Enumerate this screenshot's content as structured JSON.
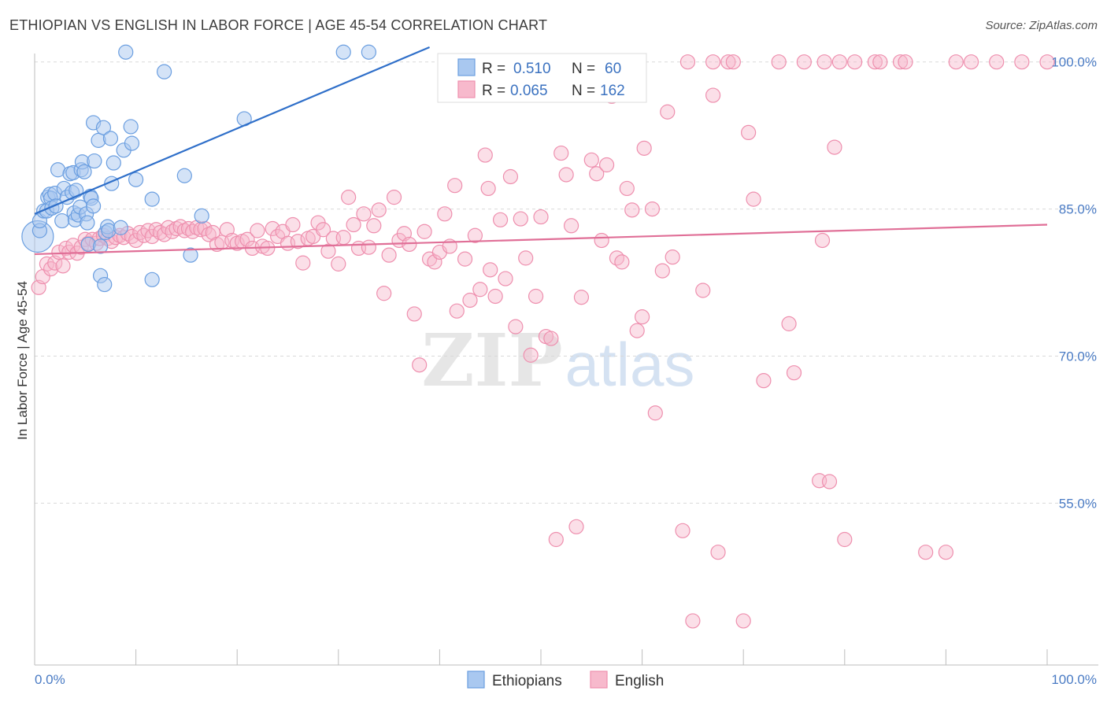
{
  "title": "ETHIOPIAN VS ENGLISH IN LABOR FORCE | AGE 45-54 CORRELATION CHART",
  "source": "Source: ZipAtlas.com",
  "watermark": {
    "zip": "ZIP",
    "atlas": "atlas"
  },
  "colors": {
    "ethiopian_fill": "#a9c8f0",
    "ethiopian_stroke": "#6a9ee0",
    "ethiopian_line": "#2f6fc9",
    "english_fill": "#f7b9cc",
    "english_stroke": "#ee8fae",
    "english_line": "#e06f97",
    "grid": "#d9d9d9",
    "axis_tick_text": "#4a7bc4"
  },
  "legend": {
    "rows": [
      {
        "r_label": "R = ",
        "r_value": "0.510",
        "n_label": "N = ",
        "n_value": "60"
      },
      {
        "r_label": "R = ",
        "r_value": "0.065",
        "n_label": "N = ",
        "n_value": "162"
      }
    ]
  },
  "bottom_legend": [
    "Ethiopians",
    "English"
  ],
  "chart_data": {
    "type": "scatter",
    "title": "ETHIOPIAN VS ENGLISH IN LABOR FORCE | AGE 45-54 CORRELATION CHART",
    "xlabel": "",
    "ylabel": "In Labor Force | Age 45-54",
    "xlim": [
      0,
      100
    ],
    "ylim": [
      38.5,
      101.5
    ],
    "x_ticks": [
      "0.0%",
      "100.0%"
    ],
    "y_ticks": [
      {
        "value": 100,
        "label": "100.0%"
      },
      {
        "value": 85,
        "label": "85.0%"
      },
      {
        "value": 70,
        "label": "70.0%"
      },
      {
        "value": 55,
        "label": "55.0%"
      }
    ],
    "grid": true,
    "legend_position": "top-center",
    "series": [
      {
        "name": "Ethiopians",
        "r": 0.51,
        "n": 60,
        "trend": {
          "x0": 0,
          "y0": 84.5,
          "x1": 39,
          "y1": 101.5
        },
        "points": [
          [
            0.3,
            82.2
          ],
          [
            0.5,
            82.8
          ],
          [
            0.5,
            83.8
          ],
          [
            0.9,
            84.8
          ],
          [
            1.2,
            84.8
          ],
          [
            1.3,
            86.2
          ],
          [
            1.5,
            86.5
          ],
          [
            1.6,
            86.1
          ],
          [
            1.7,
            85.1
          ],
          [
            2.0,
            86.6
          ],
          [
            2.1,
            85.3
          ],
          [
            2.3,
            89.0
          ],
          [
            2.7,
            83.8
          ],
          [
            2.9,
            87.1
          ],
          [
            3.2,
            86.2
          ],
          [
            3.5,
            88.6
          ],
          [
            3.7,
            86.7
          ],
          [
            3.8,
            88.7
          ],
          [
            3.9,
            84.6
          ],
          [
            4.0,
            83.9
          ],
          [
            4.1,
            86.9
          ],
          [
            4.3,
            84.4
          ],
          [
            4.5,
            85.2
          ],
          [
            4.6,
            89.0
          ],
          [
            4.7,
            89.8
          ],
          [
            4.9,
            88.8
          ],
          [
            5.1,
            84.5
          ],
          [
            5.2,
            83.6
          ],
          [
            5.3,
            81.4
          ],
          [
            5.5,
            86.3
          ],
          [
            5.6,
            86.1
          ],
          [
            5.8,
            85.3
          ],
          [
            5.8,
            93.8
          ],
          [
            5.9,
            89.9
          ],
          [
            6.3,
            92.0
          ],
          [
            6.5,
            81.2
          ],
          [
            6.5,
            78.2
          ],
          [
            6.8,
            93.3
          ],
          [
            6.9,
            77.3
          ],
          [
            7.0,
            82.6
          ],
          [
            7.2,
            83.2
          ],
          [
            7.3,
            82.8
          ],
          [
            7.5,
            92.2
          ],
          [
            7.6,
            87.6
          ],
          [
            7.8,
            89.7
          ],
          [
            8.5,
            83.1
          ],
          [
            8.8,
            91.0
          ],
          [
            9.0,
            101.0
          ],
          [
            9.5,
            93.4
          ],
          [
            9.6,
            91.7
          ],
          [
            10.0,
            88.0
          ],
          [
            11.6,
            86.0
          ],
          [
            11.6,
            77.8
          ],
          [
            12.8,
            99.0
          ],
          [
            14.8,
            88.4
          ],
          [
            15.4,
            80.3
          ],
          [
            16.5,
            84.3
          ],
          [
            20.7,
            94.2
          ],
          [
            30.5,
            101.0
          ],
          [
            33.0,
            101.0
          ]
        ]
      },
      {
        "name": "English",
        "r": 0.065,
        "n": 162,
        "trend": {
          "x0": 0,
          "y0": 80.4,
          "x1": 100,
          "y1": 83.4
        },
        "points": [
          [
            0.4,
            77.0
          ],
          [
            0.8,
            78.1
          ],
          [
            1.2,
            79.4
          ],
          [
            1.6,
            78.9
          ],
          [
            2.0,
            79.5
          ],
          [
            2.4,
            80.6
          ],
          [
            2.8,
            79.2
          ],
          [
            3.1,
            81.0
          ],
          [
            3.4,
            80.6
          ],
          [
            3.8,
            81.3
          ],
          [
            4.2,
            80.5
          ],
          [
            4.6,
            81.1
          ],
          [
            5.0,
            81.9
          ],
          [
            5.3,
            81.5
          ],
          [
            5.7,
            81.9
          ],
          [
            6.1,
            81.5
          ],
          [
            6.4,
            82.0
          ],
          [
            6.8,
            82.3
          ],
          [
            7.2,
            82.0
          ],
          [
            7.6,
            81.7
          ],
          [
            8.0,
            82.1
          ],
          [
            8.4,
            82.3
          ],
          [
            8.8,
            82.1
          ],
          [
            9.2,
            82.5
          ],
          [
            9.6,
            82.2
          ],
          [
            10.0,
            81.8
          ],
          [
            10.4,
            82.6
          ],
          [
            10.8,
            82.3
          ],
          [
            11.2,
            82.8
          ],
          [
            11.6,
            82.2
          ],
          [
            12.0,
            82.9
          ],
          [
            12.4,
            82.6
          ],
          [
            12.8,
            82.4
          ],
          [
            13.2,
            83.1
          ],
          [
            13.6,
            82.7
          ],
          [
            14.0,
            83.0
          ],
          [
            14.4,
            83.2
          ],
          [
            14.8,
            82.8
          ],
          [
            15.2,
            83.0
          ],
          [
            15.6,
            82.7
          ],
          [
            16.0,
            83.1
          ],
          [
            16.4,
            82.9
          ],
          [
            16.8,
            83.0
          ],
          [
            17.2,
            82.4
          ],
          [
            17.6,
            82.6
          ],
          [
            18.0,
            81.4
          ],
          [
            18.5,
            81.6
          ],
          [
            19.0,
            82.9
          ],
          [
            19.5,
            81.8
          ],
          [
            20.0,
            81.5
          ],
          [
            20.5,
            81.7
          ],
          [
            21.0,
            81.9
          ],
          [
            21.5,
            81.0
          ],
          [
            22.0,
            82.8
          ],
          [
            22.5,
            81.2
          ],
          [
            23.0,
            81.0
          ],
          [
            23.5,
            83.0
          ],
          [
            24.0,
            82.2
          ],
          [
            24.5,
            82.7
          ],
          [
            25.0,
            81.5
          ],
          [
            25.5,
            83.4
          ],
          [
            26.0,
            81.7
          ],
          [
            26.5,
            79.5
          ],
          [
            27.0,
            82.0
          ],
          [
            27.5,
            82.2
          ],
          [
            28.0,
            83.6
          ],
          [
            28.5,
            82.9
          ],
          [
            29.0,
            80.7
          ],
          [
            29.5,
            82.0
          ],
          [
            30.0,
            79.4
          ],
          [
            30.5,
            82.1
          ],
          [
            31.0,
            86.2
          ],
          [
            31.5,
            83.4
          ],
          [
            32.0,
            81.0
          ],
          [
            32.5,
            84.5
          ],
          [
            33.0,
            81.1
          ],
          [
            33.5,
            83.3
          ],
          [
            34.0,
            84.9
          ],
          [
            34.5,
            76.4
          ],
          [
            35.0,
            80.3
          ],
          [
            35.5,
            86.2
          ],
          [
            36.0,
            81.8
          ],
          [
            36.5,
            82.5
          ],
          [
            37.0,
            81.4
          ],
          [
            37.5,
            74.3
          ],
          [
            38.0,
            69.1
          ],
          [
            38.5,
            82.7
          ],
          [
            39.0,
            79.9
          ],
          [
            39.5,
            79.6
          ],
          [
            40.0,
            80.6
          ],
          [
            40.5,
            84.5
          ],
          [
            41.0,
            81.2
          ],
          [
            41.5,
            87.4
          ],
          [
            41.7,
            74.6
          ],
          [
            42.5,
            79.9
          ],
          [
            43.0,
            75.7
          ],
          [
            43.5,
            82.3
          ],
          [
            44.0,
            76.8
          ],
          [
            44.5,
            90.5
          ],
          [
            44.8,
            87.1
          ],
          [
            45.0,
            78.8
          ],
          [
            45.5,
            76.1
          ],
          [
            46.0,
            83.9
          ],
          [
            46.5,
            77.9
          ],
          [
            47.0,
            88.3
          ],
          [
            47.5,
            73.0
          ],
          [
            48.0,
            84.0
          ],
          [
            48.5,
            80.0
          ],
          [
            49.0,
            70.1
          ],
          [
            49.5,
            76.1
          ],
          [
            50.0,
            84.2
          ],
          [
            50.5,
            72.0
          ],
          [
            51.0,
            71.8
          ],
          [
            51.5,
            51.3
          ],
          [
            52.0,
            90.7
          ],
          [
            52.5,
            88.5
          ],
          [
            53.0,
            83.3
          ],
          [
            53.5,
            52.6
          ],
          [
            54.0,
            76.0
          ],
          [
            55.0,
            90.0
          ],
          [
            55.5,
            88.6
          ],
          [
            56.0,
            81.8
          ],
          [
            56.5,
            89.5
          ],
          [
            57.0,
            96.5
          ],
          [
            57.5,
            80.0
          ],
          [
            58.0,
            79.6
          ],
          [
            58.5,
            87.1
          ],
          [
            59.0,
            84.9
          ],
          [
            59.5,
            72.6
          ],
          [
            60.0,
            74.0
          ],
          [
            60.2,
            91.2
          ],
          [
            61.0,
            85.0
          ],
          [
            61.3,
            64.2
          ],
          [
            62.0,
            78.7
          ],
          [
            62.5,
            94.9
          ],
          [
            63.0,
            80.1
          ],
          [
            64.0,
            52.2
          ],
          [
            65.0,
            43.0
          ],
          [
            66.0,
            76.7
          ],
          [
            67.0,
            96.6
          ],
          [
            67.5,
            50.0
          ],
          [
            68.5,
            100.0
          ],
          [
            69.0,
            100.0
          ],
          [
            70.0,
            43.0
          ],
          [
            70.5,
            92.8
          ],
          [
            71.0,
            86.0
          ],
          [
            72.0,
            67.5
          ],
          [
            73.5,
            100.0
          ],
          [
            74.5,
            73.3
          ],
          [
            75.0,
            68.3
          ],
          [
            76.0,
            100.0
          ],
          [
            77.5,
            57.3
          ],
          [
            78.0,
            100.0
          ],
          [
            78.5,
            57.2
          ],
          [
            79.0,
            91.3
          ],
          [
            79.5,
            100.0
          ],
          [
            80.0,
            51.3
          ],
          [
            81.0,
            100.0
          ],
          [
            83.0,
            100.0
          ],
          [
            85.5,
            100.0
          ],
          [
            88.0,
            50.0
          ],
          [
            90.0,
            50.0
          ],
          [
            91.0,
            100.0
          ],
          [
            92.5,
            100.0
          ],
          [
            95.0,
            100.0
          ],
          [
            97.5,
            100.0
          ],
          [
            100.0,
            100.0
          ],
          [
            67.0,
            100.0
          ],
          [
            64.5,
            100.0
          ],
          [
            83.5,
            100.0
          ],
          [
            77.8,
            81.8
          ],
          [
            86.0,
            100.0
          ]
        ]
      }
    ]
  }
}
